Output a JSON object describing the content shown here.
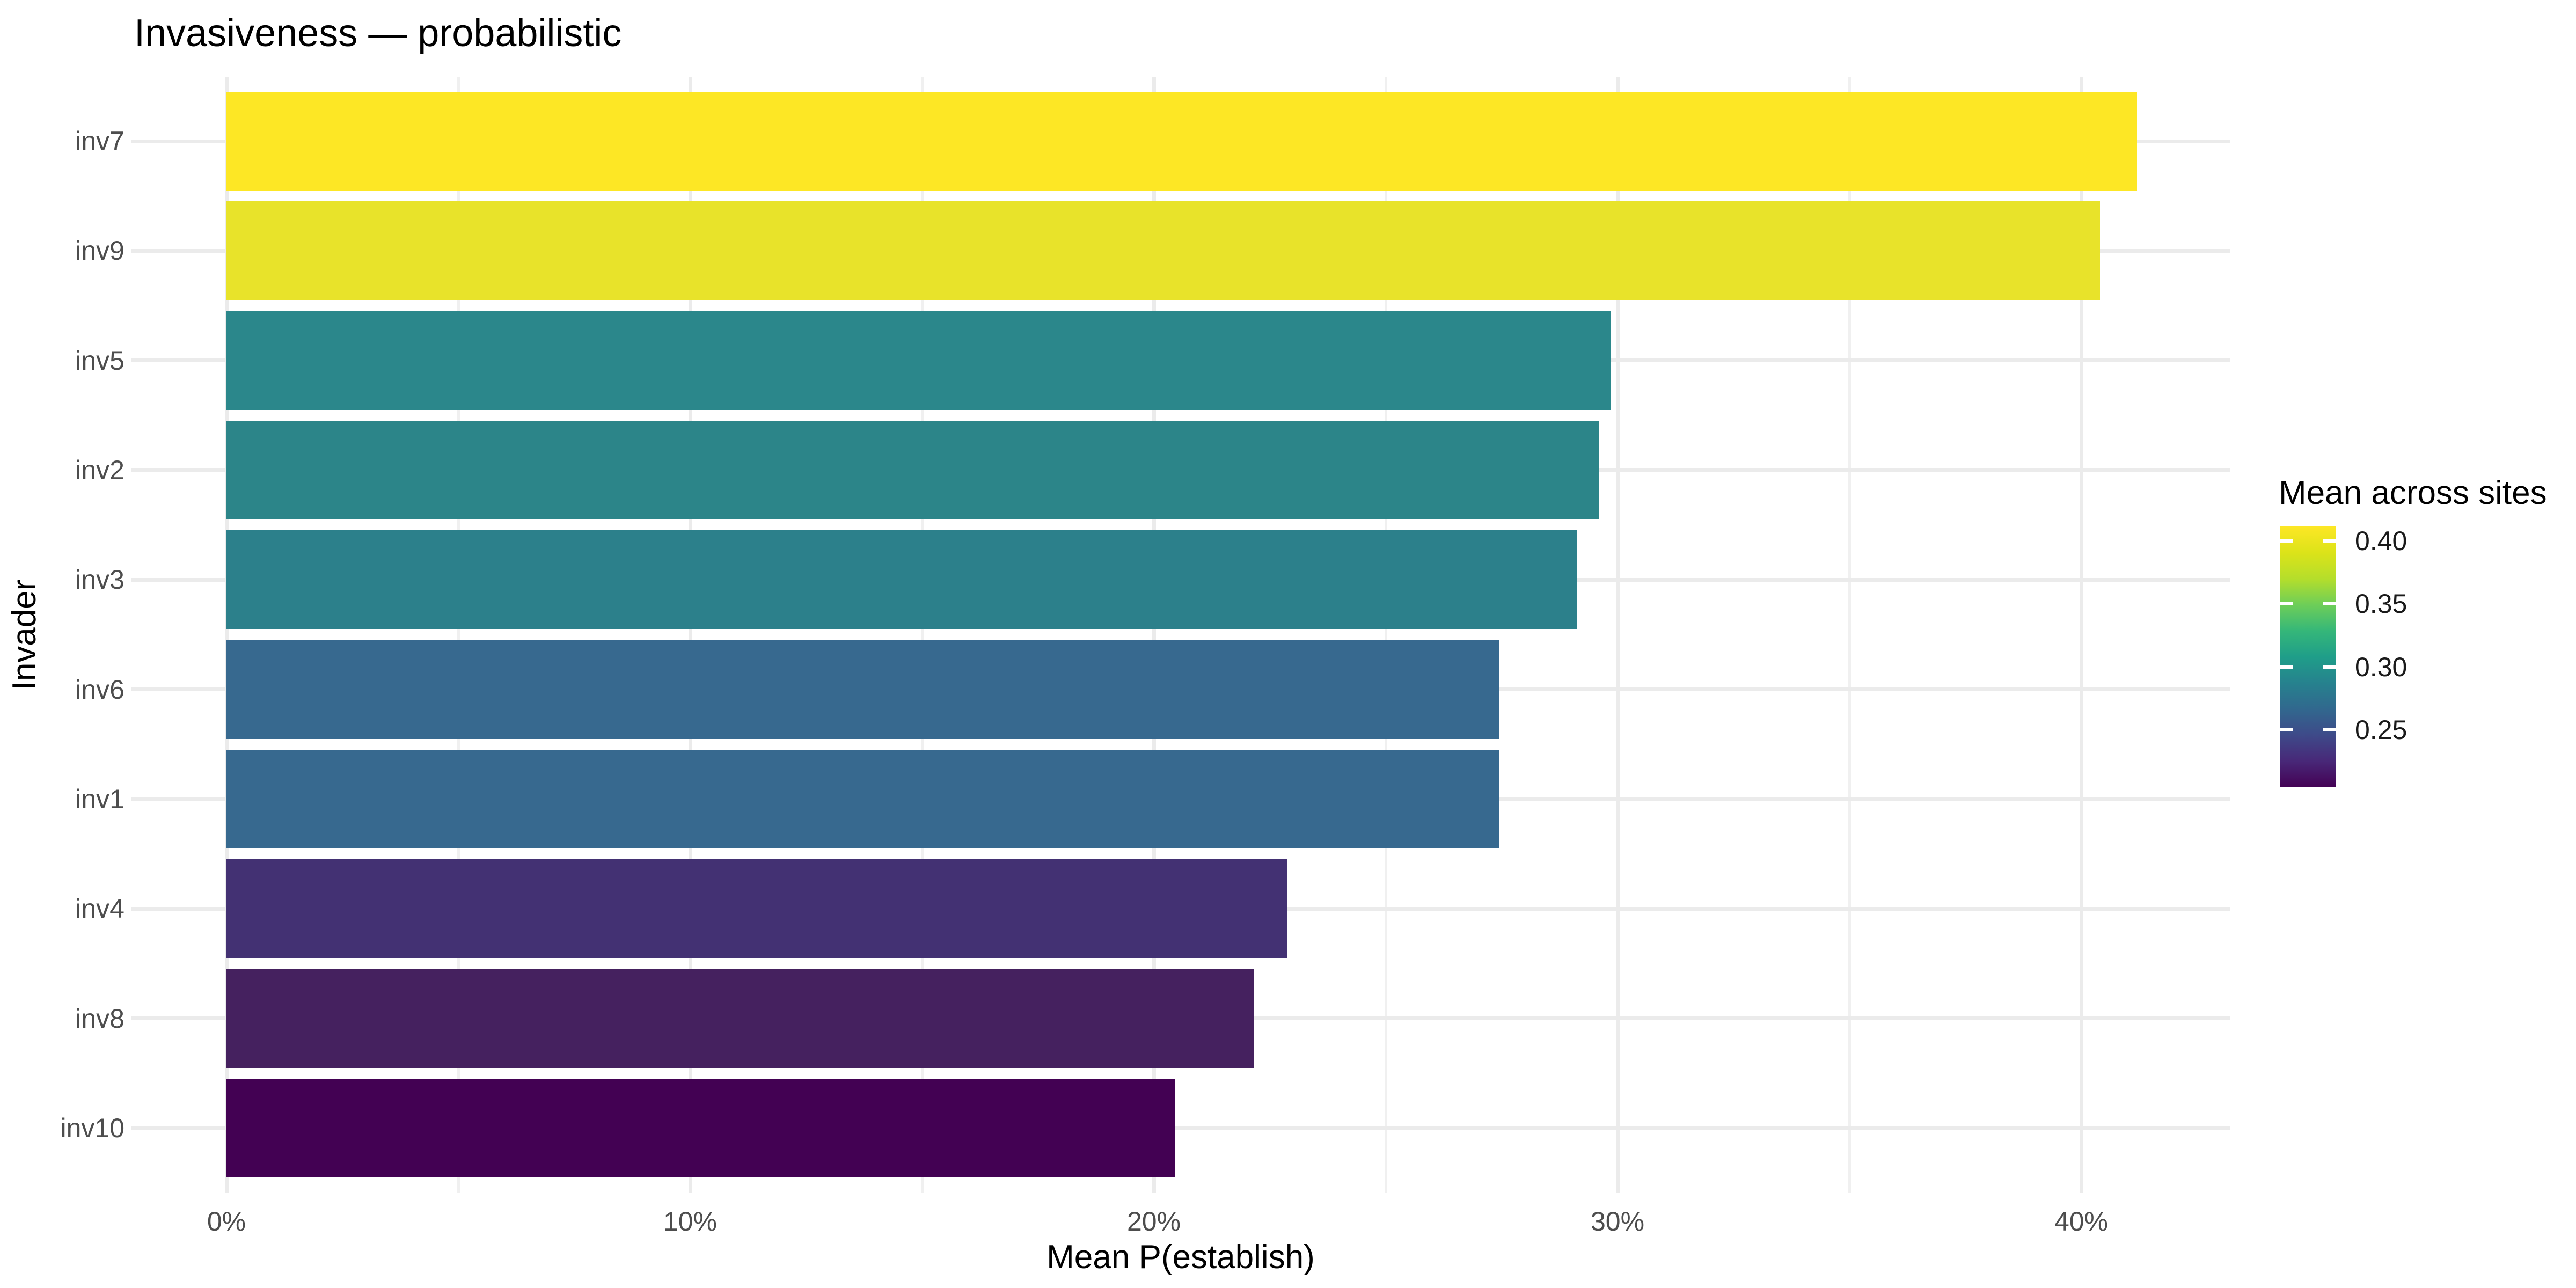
{
  "title": "Invasiveness — probabilistic",
  "x_axis": {
    "label": "Mean P(establish)",
    "tick_labels": [
      "0%",
      "10%",
      "20%",
      "30%",
      "40%"
    ],
    "tick_values": [
      0.0,
      0.1,
      0.2,
      0.3,
      0.4
    ]
  },
  "y_axis": {
    "label": "Invader"
  },
  "legend": {
    "title": "Mean across sites",
    "tick_labels": [
      "0.40",
      "0.35",
      "0.30",
      "0.25"
    ],
    "tick_values": [
      0.4,
      0.35,
      0.3,
      0.25
    ],
    "domain_max": 0.4115,
    "domain_min": 0.2046,
    "colormap": "viridis"
  },
  "chart_data": {
    "type": "bar",
    "orientation": "horizontal",
    "title": "Invasiveness — probabilistic",
    "xlabel": "Mean P(establish)",
    "ylabel": "Invader",
    "xlim": [
      0,
      0.4326
    ],
    "x_tick_format": "percent",
    "grid": true,
    "legend_position": "right",
    "categories": [
      "inv7",
      "inv9",
      "inv5",
      "inv2",
      "inv3",
      "inv6",
      "inv1",
      "inv4",
      "inv8",
      "inv10"
    ],
    "values": [
      0.412,
      0.404,
      0.2985,
      0.296,
      0.2912,
      0.2744,
      0.2744,
      0.2287,
      0.2216,
      0.2046
    ],
    "fill_metric": "Mean across sites",
    "bar_colors": [
      "#FDE725",
      "#E8E32A",
      "#2B878B",
      "#2C8589",
      "#2C808B",
      "#37698F",
      "#37698F",
      "#433173",
      "#45215F",
      "#430153"
    ]
  }
}
